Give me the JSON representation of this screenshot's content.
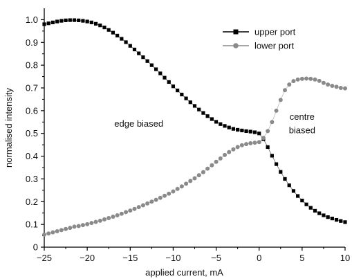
{
  "chart_data": {
    "type": "scatter",
    "xlabel": "applied current, mA",
    "ylabel": "normalised intensity",
    "xlim": [
      -25,
      10
    ],
    "ylim": [
      0,
      1.05
    ],
    "x_ticks": [
      -25,
      -20,
      -15,
      -10,
      -5,
      0,
      5,
      10
    ],
    "y_ticks": [
      0,
      0.1,
      0.2,
      0.3,
      0.4,
      0.5,
      0.6,
      0.7,
      0.8,
      0.9,
      1.0
    ],
    "x_tick_labels": [
      "−25",
      "−20",
      "−15",
      "−10",
      "−5",
      "0",
      "5",
      "10"
    ],
    "y_tick_labels": [
      "0",
      "0.1",
      "0.2",
      "0.3",
      "0.4",
      "0.5",
      "0.6",
      "0.7",
      "0.8",
      "0.9",
      "1.0"
    ],
    "grid": false,
    "legend_position": "top-right",
    "annotations": [
      {
        "text": "edge biased",
        "x": -14,
        "y": 0.53
      },
      {
        "text": "centre",
        "x": 5,
        "y": 0.56
      },
      {
        "text": "biased",
        "x": 5,
        "y": 0.5
      }
    ],
    "series": [
      {
        "name": "upper port",
        "marker": "square",
        "color": "#000000",
        "x": [
          -25,
          -24.5,
          -24,
          -23.5,
          -23,
          -22.5,
          -22,
          -21.5,
          -21,
          -20.5,
          -20,
          -19.5,
          -19,
          -18.5,
          -18,
          -17.5,
          -17,
          -16.5,
          -16,
          -15.5,
          -15,
          -14.5,
          -14,
          -13.5,
          -13,
          -12.5,
          -12,
          -11.5,
          -11,
          -10.5,
          -10,
          -9.5,
          -9,
          -8.5,
          -8,
          -7.5,
          -7,
          -6.5,
          -6,
          -5.5,
          -5,
          -4.5,
          -4,
          -3.5,
          -3,
          -2.5,
          -2,
          -1.5,
          -1,
          -0.5,
          0,
          0.5,
          1,
          1.5,
          2,
          2.5,
          3,
          3.5,
          4,
          4.5,
          5,
          5.5,
          6,
          6.5,
          7,
          7.5,
          8,
          8.5,
          9,
          9.5,
          10
        ],
        "y": [
          0.98,
          0.984,
          0.988,
          0.992,
          0.995,
          0.997,
          0.998,
          0.998,
          0.997,
          0.995,
          0.992,
          0.988,
          0.982,
          0.975,
          0.966,
          0.955,
          0.943,
          0.93,
          0.916,
          0.901,
          0.885,
          0.869,
          0.852,
          0.835,
          0.818,
          0.8,
          0.782,
          0.764,
          0.745,
          0.726,
          0.707,
          0.689,
          0.671,
          0.654,
          0.637,
          0.621,
          0.605,
          0.59,
          0.576,
          0.563,
          0.551,
          0.541,
          0.533,
          0.526,
          0.52,
          0.516,
          0.513,
          0.51,
          0.508,
          0.505,
          0.5,
          0.475,
          0.44,
          0.402,
          0.365,
          0.331,
          0.3,
          0.272,
          0.247,
          0.225,
          0.205,
          0.188,
          0.173,
          0.16,
          0.149,
          0.14,
          0.132,
          0.126,
          0.12,
          0.115,
          0.11
        ]
      },
      {
        "name": "lower port",
        "marker": "circle",
        "color": "#8a8a8a",
        "x": [
          -25,
          -24.5,
          -24,
          -23.5,
          -23,
          -22.5,
          -22,
          -21.5,
          -21,
          -20.5,
          -20,
          -19.5,
          -19,
          -18.5,
          -18,
          -17.5,
          -17,
          -16.5,
          -16,
          -15.5,
          -15,
          -14.5,
          -14,
          -13.5,
          -13,
          -12.5,
          -12,
          -11.5,
          -11,
          -10.5,
          -10,
          -9.5,
          -9,
          -8.5,
          -8,
          -7.5,
          -7,
          -6.5,
          -6,
          -5.5,
          -5,
          -4.5,
          -4,
          -3.5,
          -3,
          -2.5,
          -2,
          -1.5,
          -1,
          -0.5,
          0,
          0.5,
          1,
          1.5,
          2,
          2.5,
          3,
          3.5,
          4,
          4.5,
          5,
          5.5,
          6,
          6.5,
          7,
          7.5,
          8,
          8.5,
          9,
          9.5,
          10
        ],
        "y": [
          0.055,
          0.06,
          0.065,
          0.07,
          0.075,
          0.08,
          0.085,
          0.09,
          0.093,
          0.097,
          0.101,
          0.106,
          0.111,
          0.116,
          0.122,
          0.128,
          0.134,
          0.14,
          0.147,
          0.154,
          0.161,
          0.168,
          0.176,
          0.184,
          0.192,
          0.2,
          0.208,
          0.217,
          0.226,
          0.235,
          0.245,
          0.256,
          0.267,
          0.279,
          0.291,
          0.303,
          0.316,
          0.33,
          0.345,
          0.36,
          0.375,
          0.39,
          0.405,
          0.418,
          0.43,
          0.44,
          0.448,
          0.453,
          0.457,
          0.459,
          0.462,
          0.48,
          0.51,
          0.55,
          0.6,
          0.647,
          0.69,
          0.715,
          0.73,
          0.737,
          0.74,
          0.741,
          0.74,
          0.737,
          0.731,
          0.722,
          0.715,
          0.709,
          0.705,
          0.7,
          0.698
        ]
      }
    ]
  }
}
